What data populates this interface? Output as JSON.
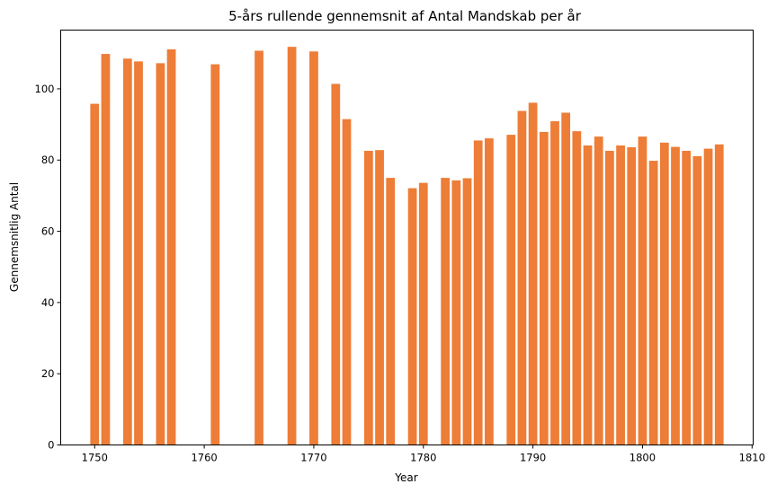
{
  "chart_data": {
    "type": "bar",
    "title": "5-års rullende gennemsnit af Antal Mandskab per år",
    "xlabel": "Year",
    "ylabel": "Gennemsnitlig Antal",
    "xlim": [
      1746.9,
      1810.1
    ],
    "ylim": [
      0,
      116.5
    ],
    "xticks": [
      1750,
      1760,
      1770,
      1780,
      1790,
      1800,
      1810
    ],
    "yticks": [
      0,
      20,
      40,
      60,
      80,
      100
    ],
    "grid": false,
    "bar_color": "#ed7d37",
    "x": [
      1750,
      1751,
      1753,
      1754,
      1756,
      1757,
      1761,
      1765,
      1768,
      1770,
      1772,
      1773,
      1775,
      1776,
      1777,
      1779,
      1780,
      1782,
      1783,
      1784,
      1785,
      1786,
      1788,
      1789,
      1790,
      1791,
      1792,
      1793,
      1794,
      1795,
      1796,
      1797,
      1798,
      1799,
      1800,
      1801,
      1802,
      1803,
      1804,
      1805,
      1806,
      1807
    ],
    "values": [
      95.8,
      109.8,
      108.5,
      107.7,
      107.2,
      111.1,
      106.9,
      110.7,
      111.8,
      110.5,
      101.4,
      91.5,
      82.6,
      82.8,
      75.0,
      72.1,
      73.6,
      75.0,
      74.3,
      74.9,
      85.5,
      86.1,
      87.1,
      93.8,
      96.1,
      87.9,
      90.9,
      93.3,
      88.1,
      84.1,
      86.6,
      82.6,
      84.1,
      83.6,
      86.6,
      79.8,
      84.9,
      83.7,
      82.6,
      81.1,
      83.2,
      84.4
    ]
  }
}
